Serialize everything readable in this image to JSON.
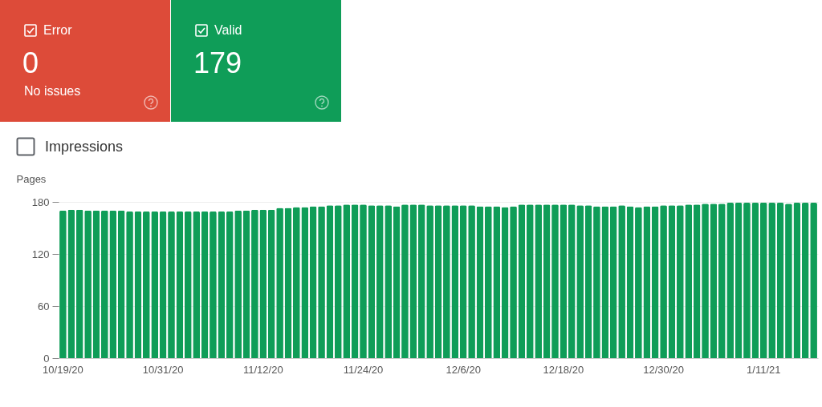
{
  "chart_data": {
    "type": "bar",
    "ylabel": "Pages",
    "annotations": [
      "Error",
      "0",
      "No issues",
      "Valid",
      "179",
      "Impressions"
    ],
    "categories": [
      "10/19/20",
      null,
      null,
      null,
      null,
      null,
      null,
      null,
      null,
      null,
      null,
      null,
      "10/31/20",
      null,
      null,
      null,
      null,
      null,
      null,
      null,
      null,
      null,
      null,
      null,
      "11/12/20",
      null,
      null,
      null,
      null,
      null,
      null,
      null,
      null,
      null,
      null,
      null,
      "11/24/20",
      null,
      null,
      null,
      null,
      null,
      null,
      null,
      null,
      null,
      null,
      null,
      "12/6/20",
      null,
      null,
      null,
      null,
      null,
      null,
      null,
      null,
      null,
      null,
      null,
      "12/18/20",
      null,
      null,
      null,
      null,
      null,
      null,
      null,
      null,
      null,
      null,
      null,
      "12/30/20",
      null,
      null,
      null,
      null,
      null,
      null,
      null,
      null,
      null,
      null,
      null,
      "1/11/21",
      null,
      null,
      null,
      null,
      null,
      null
    ],
    "series": [
      {
        "color": "#0f9d58",
        "values": [
          170,
          171,
          171,
          170,
          170,
          170,
          170,
          170,
          169,
          169,
          169,
          169,
          169,
          169,
          169,
          169,
          169,
          169,
          169,
          169,
          169,
          170,
          170,
          171,
          171,
          171,
          173,
          173,
          174,
          174,
          175,
          175,
          176,
          176,
          177,
          177,
          177,
          176,
          176,
          176,
          175,
          177,
          177,
          177,
          176,
          176,
          176,
          176,
          176,
          176,
          175,
          175,
          175,
          174,
          175,
          177,
          177,
          177,
          177,
          177,
          177,
          177,
          176,
          176,
          175,
          175,
          175,
          176,
          175,
          174,
          175,
          175,
          176,
          176,
          176,
          177,
          177,
          178,
          178,
          178,
          179,
          179,
          179,
          179,
          179,
          179,
          179,
          178,
          179,
          179,
          179
        ]
      }
    ],
    "ylim": [
      0,
      180
    ],
    "yticks": [
      0,
      60,
      120,
      180
    ],
    "grid": "y"
  }
}
